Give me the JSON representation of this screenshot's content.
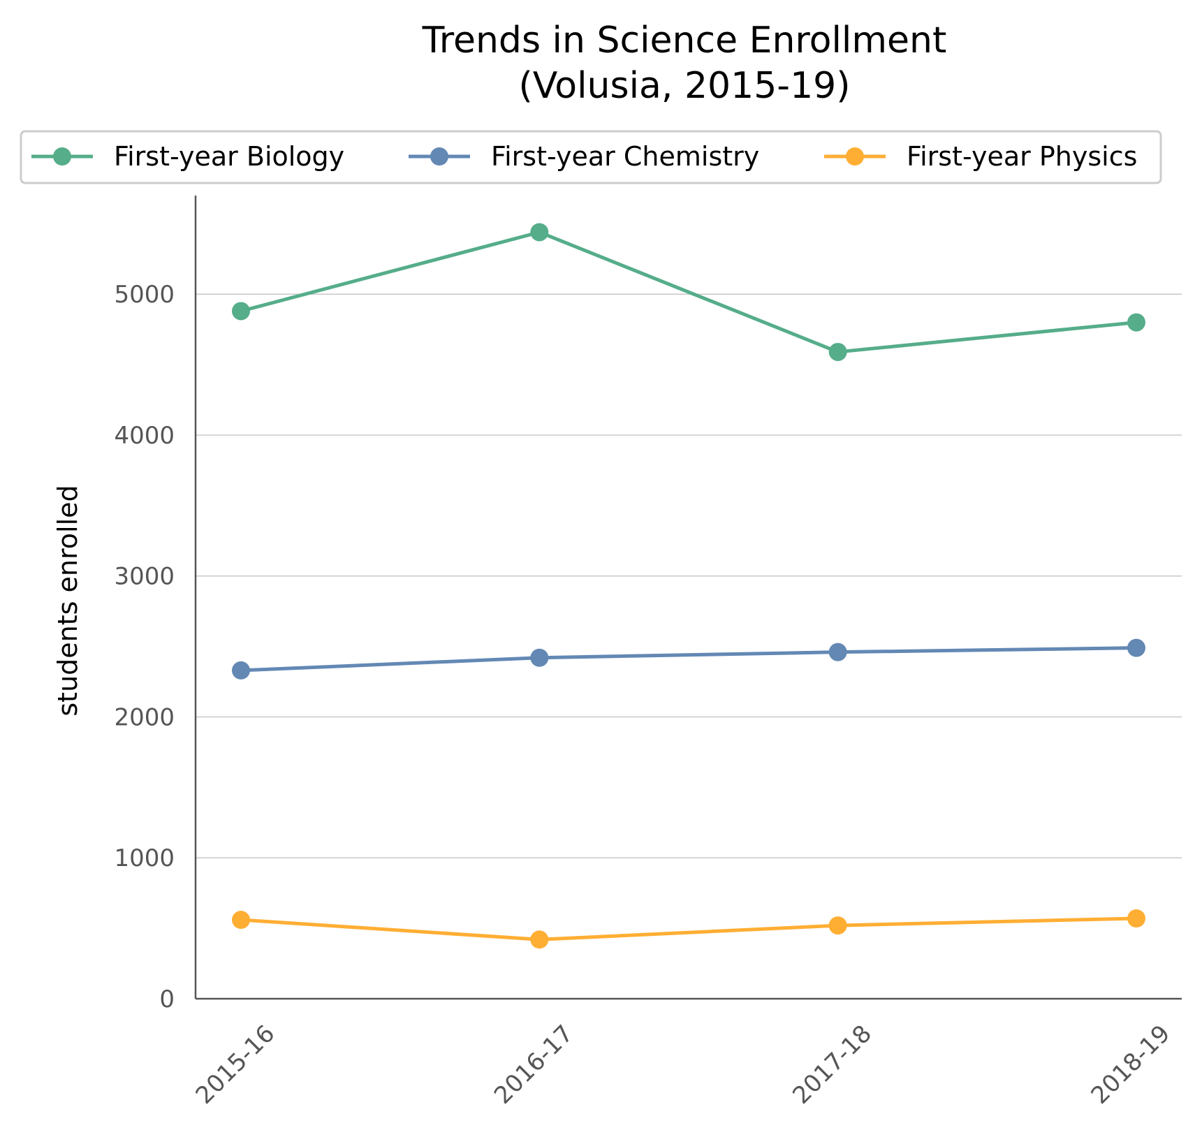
{
  "chart_data": {
    "type": "line",
    "title": [
      "Trends in Science Enrollment",
      "(Volusia, 2015-19)"
    ],
    "xlabel": "",
    "ylabel": "students enrolled",
    "categories": [
      "2015-16",
      "2016-17",
      "2017-18",
      "2018-19"
    ],
    "ylim": [
      0,
      5700
    ],
    "yticks": [
      0,
      1000,
      2000,
      3000,
      4000,
      5000
    ],
    "grid": "horizontal",
    "legend_position": "top",
    "series": [
      {
        "name": "First-year Biology",
        "color": "#55ad89",
        "values": [
          4880,
          5440,
          4590,
          4800
        ]
      },
      {
        "name": "First-year Chemistry",
        "color": "#6388b4",
        "values": [
          2330,
          2420,
          2460,
          2490
        ]
      },
      {
        "name": "First-year Physics",
        "color": "#ffae34",
        "values": [
          560,
          420,
          520,
          570
        ]
      }
    ]
  }
}
